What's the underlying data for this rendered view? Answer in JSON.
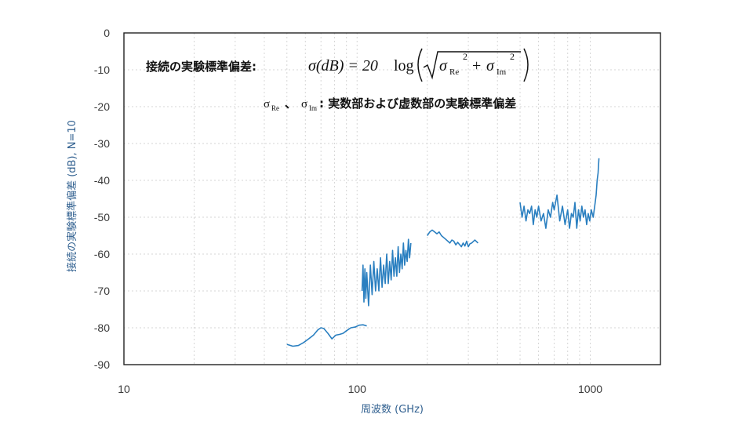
{
  "chart_data": {
    "type": "line",
    "xscale": "log",
    "xlim": [
      10,
      2000
    ],
    "ylim": [
      -90,
      0
    ],
    "xticks": [
      10,
      100,
      1000
    ],
    "yticks": [
      0,
      -10,
      -20,
      -30,
      -40,
      -50,
      -60,
      -70,
      -80,
      -90
    ],
    "xlabel": "周波数 (GHz)",
    "ylabel": "接続の実験標準偏差 (dB), N=10",
    "grid": true,
    "line_color": "#2a7fc0",
    "annotations": {
      "line1_label": "接続の実験標準偏差:",
      "formula_lhs": "σ(dB) = 20",
      "formula_log": "log",
      "sigma": "σ",
      "sub_re": "Re",
      "sub_im": "Im",
      "sup": "2",
      "plus": "+",
      "line2_sigma_re": "σ",
      "line2_sub_re": "Re",
      "line2_sep": "、",
      "line2_sigma_im": "σ",
      "line2_sub_im": "Im",
      "line2_text": ": 実数部および虚数部の実験標準偏差"
    },
    "series": [
      {
        "x": [
          50,
          53,
          56,
          59,
          62,
          65,
          68,
          70,
          72,
          75,
          78,
          81,
          84,
          87,
          90,
          94,
          98,
          102,
          106,
          110
        ],
        "y": [
          -84.5,
          -85,
          -84.8,
          -84,
          -83,
          -82,
          -80.5,
          -80,
          -80.2,
          -81.5,
          -83,
          -82,
          -81.8,
          -81.5,
          -80.8,
          -80,
          -79.8,
          -79.3,
          -79.2,
          -79.5
        ]
      },
      {
        "x": [
          105,
          106,
          107,
          108,
          109,
          110,
          112,
          114,
          116,
          118,
          120,
          122,
          124,
          126,
          128,
          130,
          132,
          134,
          136,
          138,
          140,
          142,
          144,
          146,
          148,
          150,
          152,
          154,
          156,
          158,
          160,
          162,
          164,
          166,
          168,
          170
        ],
        "y": [
          -70,
          -63,
          -73,
          -64,
          -72,
          -65,
          -74,
          -63,
          -71,
          -62,
          -70,
          -64,
          -70,
          -61,
          -69,
          -63,
          -68,
          -60,
          -68,
          -62,
          -67,
          -59,
          -66,
          -61,
          -66,
          -58,
          -65,
          -60,
          -64,
          -57,
          -63,
          -59,
          -62,
          -56,
          -61,
          -57
        ]
      },
      {
        "x": [
          200,
          205,
          210,
          215,
          220,
          225,
          230,
          240,
          250,
          255,
          260,
          265,
          270,
          280,
          285,
          290,
          295,
          300,
          305,
          310,
          320,
          330
        ],
        "y": [
          -55,
          -54,
          -53.5,
          -54,
          -54.5,
          -54,
          -55,
          -56,
          -57,
          -56.2,
          -56.5,
          -57.5,
          -56.8,
          -58,
          -57,
          -57.8,
          -56.5,
          -58,
          -57.2,
          -57,
          -56.2,
          -57
        ]
      },
      {
        "x": [
          500,
          510,
          520,
          530,
          540,
          550,
          560,
          570,
          580,
          590,
          600,
          615,
          630,
          645,
          660,
          675,
          690,
          700,
          720,
          740,
          760,
          780,
          800,
          815,
          830,
          845,
          860,
          875,
          890,
          905,
          920,
          935,
          950,
          965,
          980,
          995,
          1010,
          1030,
          1045,
          1060,
          1070,
          1080,
          1090
        ],
        "y": [
          -46,
          -50,
          -47,
          -51,
          -48,
          -49,
          -47,
          -52,
          -48,
          -50,
          -47,
          -51,
          -49,
          -53,
          -48,
          -50,
          -46,
          -48,
          -44,
          -51,
          -47,
          -52,
          -48,
          -53,
          -49,
          -50,
          -46,
          -53,
          -48,
          -51,
          -47,
          -50,
          -48,
          -52,
          -49,
          -51,
          -48,
          -50,
          -47,
          -44,
          -40,
          -38,
          -34
        ]
      }
    ]
  }
}
